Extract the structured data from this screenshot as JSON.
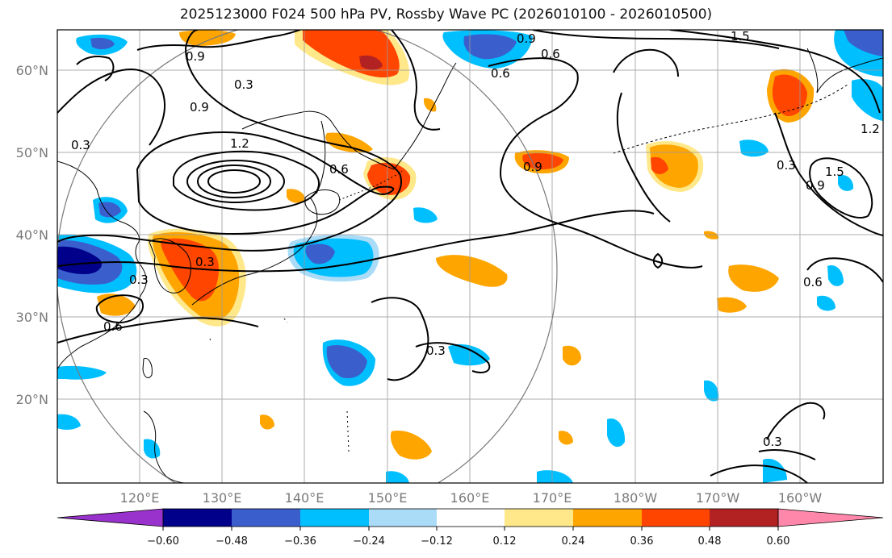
{
  "title": "2025123000 F024 500 hPa PV, Rossby Wave PC (2026010100 - 2026010500)",
  "map": {
    "lon_ticks": [
      "120°E",
      "130°E",
      "140°E",
      "150°E",
      "160°E",
      "170°E",
      "180°W",
      "170°W",
      "160°W"
    ],
    "lat_ticks": [
      "60°N",
      "50°N",
      "40°N",
      "30°N",
      "20°N"
    ],
    "contour_labels": [
      "0.9",
      "0.6",
      "0.3",
      "1.2",
      "1.5"
    ]
  },
  "colorbar": {
    "ticks": [
      "−0.60",
      "−0.48",
      "−0.36",
      "−0.24",
      "−0.12",
      "0.12",
      "0.24",
      "0.36",
      "0.48",
      "0.60"
    ],
    "colors": [
      "#9932cc",
      "#00008b",
      "#3a5fcd",
      "#00bfff",
      "#aadcf8",
      "#ffffff",
      "#ffe88a",
      "#ffa500",
      "#ff4500",
      "#b22222",
      "#ff88aa"
    ]
  },
  "palette": {
    "blue_light": "#aadcf8",
    "blue": "#00bfff",
    "blue_dark": "#3a5fcd",
    "navy": "#00008b",
    "yellow": "#ffe88a",
    "orange": "#ffa500",
    "red_orange": "#ff4500",
    "dark_red": "#b22222"
  }
}
